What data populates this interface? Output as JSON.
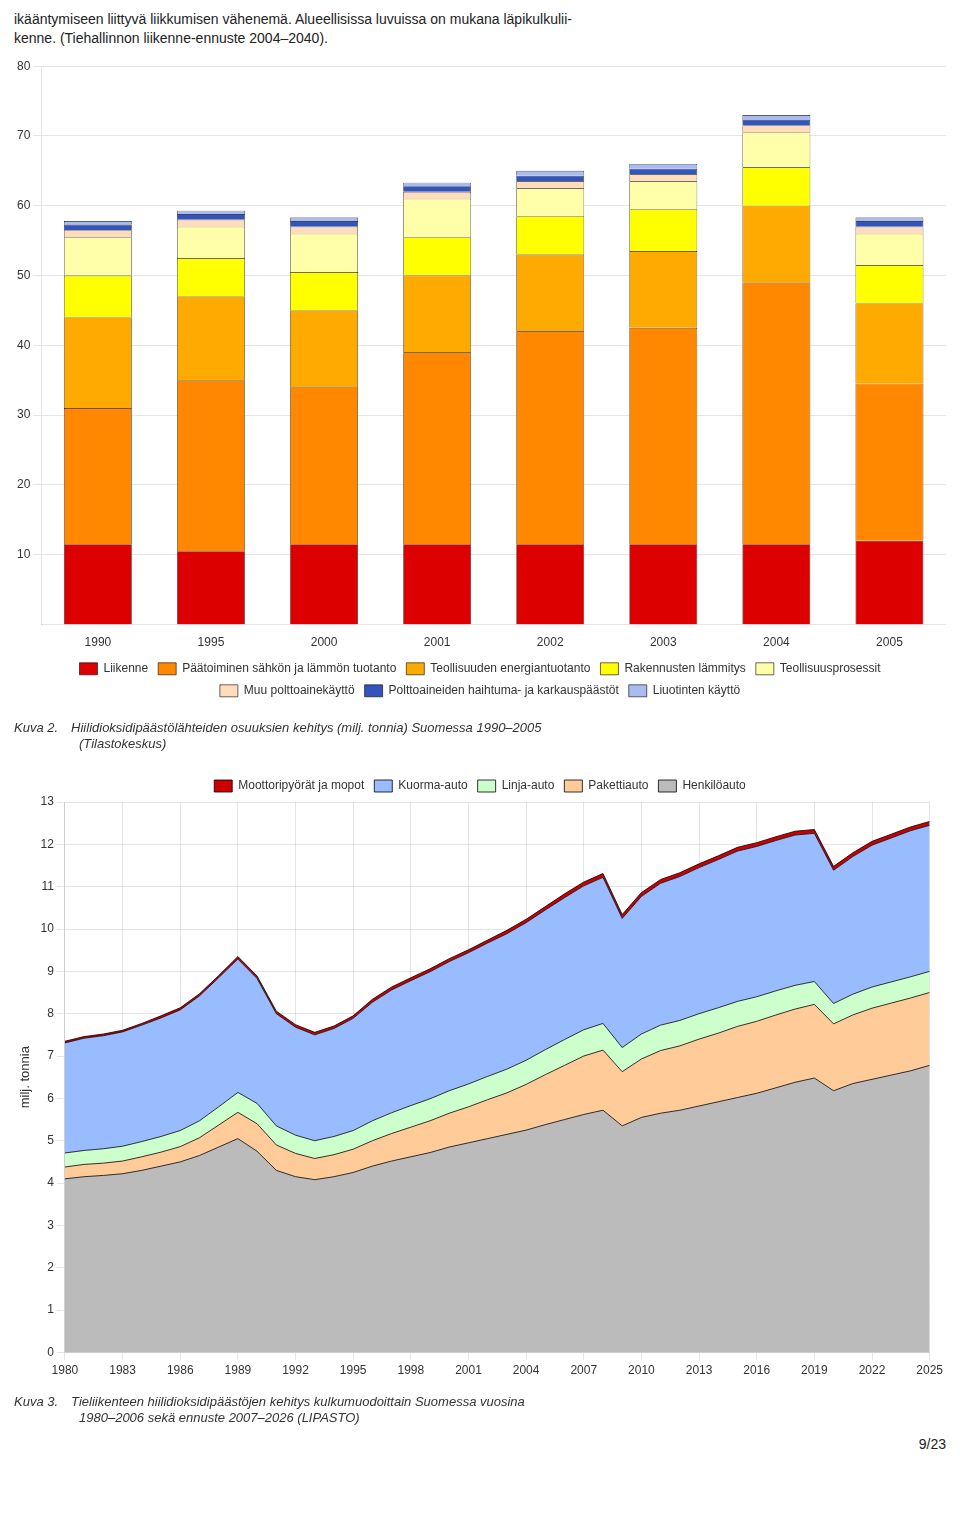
{
  "chart_data": [
    {
      "type": "bar",
      "stacked": true,
      "grid": "y",
      "legend": "bottom",
      "title": [
        "Kuva 2. Hiilidioksidipäästölähteiden osuuksien kehitys (milj. tonnia) Suomessa 1990–2005",
        "     (Tilastokeskus)"
      ],
      "annotations": [
        "ikääntymiseen liittyvä liikkumisen vähenemä. Alueellisissa luvuissa on mukana läpikulkulii-\nkenne. (Tiehallinnon liikenne-ennuste 2004–2040)."
      ],
      "categories": [
        "1990",
        "1995",
        "2000",
        "2001",
        "2002",
        "2003",
        "2004",
        "2005"
      ],
      "ylim": [
        0,
        80
      ],
      "yticks": [
        10,
        20,
        30,
        40,
        50,
        60,
        70,
        80
      ],
      "series": [
        {
          "name": "Liikenne",
          "color": "#DD0000",
          "values": [
            11.5,
            10.5,
            11.5,
            11.5,
            11.5,
            11.5,
            11.5,
            12.0
          ]
        },
        {
          "name": "Päätoiminen sähkön ja lämmön tuotanto",
          "color": "#FF8800",
          "values": [
            19.5,
            24.5,
            22.5,
            27.5,
            30.5,
            31.0,
            37.5,
            22.5
          ]
        },
        {
          "name": "Teollisuuden energiantuotanto",
          "color": "#FFAA00",
          "values": [
            13.0,
            12.0,
            11.0,
            11.0,
            11.0,
            11.0,
            11.0,
            11.5
          ]
        },
        {
          "name": "Rakennusten lämmitys",
          "color": "#FFFF00",
          "values": [
            6.0,
            5.5,
            5.5,
            5.5,
            5.5,
            6.0,
            5.5,
            5.5
          ]
        },
        {
          "name": "Teollisuusprosessit",
          "color": "#FFFFAA",
          "values": [
            5.5,
            4.5,
            5.5,
            5.5,
            4.0,
            4.0,
            5.0,
            4.5
          ]
        },
        {
          "name": "Muu polttoainekäyttö",
          "color": "#FFDDBB",
          "values": [
            1.0,
            1.0,
            1.0,
            1.0,
            1.0,
            1.0,
            1.0,
            1.0
          ]
        },
        {
          "name": "Polttoaineiden haihtuma- ja karkauspäästöt",
          "color": "#3355BB",
          "values": [
            0.8,
            0.8,
            0.8,
            0.8,
            0.8,
            0.8,
            0.8,
            0.8
          ]
        },
        {
          "name": "Liuotinten käyttö",
          "color": "#AABBEE",
          "values": [
            0.5,
            0.5,
            0.5,
            0.5,
            0.7,
            0.7,
            0.7,
            0.5
          ]
        }
      ]
    },
    {
      "type": "area",
      "stacked": true,
      "grid": true,
      "legend": "top",
      "title": [
        "Kuva 3. Tieliikenteen hiilidioksidipäästöjen kehitys kulkumuodoittain Suomessa vuosina",
        "     1980–2006 sekä ennuste 2007–2026 (LIPASTO)"
      ],
      "annotations": [
        "9/23"
      ],
      "ylabel": "milj. tonnia",
      "x": [
        1980,
        1981,
        1982,
        1983,
        1984,
        1985,
        1986,
        1987,
        1988,
        1989,
        1990,
        1991,
        1992,
        1993,
        1994,
        1995,
        1996,
        1997,
        1998,
        1999,
        2000,
        2001,
        2002,
        2003,
        2004,
        2005,
        2006,
        2007,
        2008,
        2009,
        2010,
        2011,
        2012,
        2013,
        2014,
        2015,
        2016,
        2017,
        2018,
        2019,
        2020,
        2021,
        2022,
        2023,
        2024,
        2025
      ],
      "xlim": [
        1980,
        2025
      ],
      "xticks": [
        1980,
        1983,
        1986,
        1989,
        1992,
        1995,
        1998,
        2001,
        2004,
        2007,
        2010,
        2013,
        2016,
        2019,
        2022,
        2025
      ],
      "ylim": [
        0,
        13
      ],
      "yticks": [
        0,
        1,
        2,
        3,
        4,
        5,
        6,
        7,
        8,
        9,
        10,
        11,
        12,
        13
      ],
      "series": [
        {
          "name": "Henkilöauto",
          "color": "#BBBBBB",
          "values": [
            4.1,
            4.15,
            4.18,
            4.22,
            4.3,
            4.4,
            4.5,
            4.65,
            4.85,
            5.05,
            4.75,
            4.3,
            4.15,
            4.08,
            4.15,
            4.25,
            4.4,
            4.52,
            4.62,
            4.72,
            4.85,
            4.95,
            5.05,
            5.15,
            5.25,
            5.38,
            5.5,
            5.62,
            5.72,
            5.35,
            5.55,
            5.65,
            5.72,
            5.82,
            5.92,
            6.02,
            6.12,
            6.25,
            6.38,
            6.48,
            6.18,
            6.35,
            6.45,
            6.55,
            6.65,
            6.78
          ]
        },
        {
          "name": "Pakettiauto",
          "color": "#FFCC99",
          "values": [
            0.28,
            0.29,
            0.29,
            0.3,
            0.32,
            0.33,
            0.36,
            0.42,
            0.52,
            0.62,
            0.65,
            0.6,
            0.55,
            0.5,
            0.52,
            0.55,
            0.6,
            0.65,
            0.7,
            0.75,
            0.8,
            0.85,
            0.92,
            0.98,
            1.08,
            1.18,
            1.28,
            1.38,
            1.42,
            1.28,
            1.38,
            1.48,
            1.52,
            1.58,
            1.62,
            1.68,
            1.7,
            1.72,
            1.73,
            1.74,
            1.58,
            1.62,
            1.68,
            1.7,
            1.72,
            1.72
          ]
        },
        {
          "name": "Linja-auto",
          "color": "#CCFFCC",
          "values": [
            0.33,
            0.33,
            0.34,
            0.35,
            0.36,
            0.37,
            0.38,
            0.4,
            0.43,
            0.47,
            0.48,
            0.45,
            0.43,
            0.42,
            0.43,
            0.44,
            0.47,
            0.49,
            0.51,
            0.52,
            0.53,
            0.54,
            0.55,
            0.56,
            0.57,
            0.59,
            0.61,
            0.62,
            0.63,
            0.57,
            0.59,
            0.6,
            0.6,
            0.6,
            0.6,
            0.59,
            0.58,
            0.57,
            0.56,
            0.54,
            0.48,
            0.49,
            0.5,
            0.5,
            0.5,
            0.5
          ]
        },
        {
          "name": "Kuorma-auto",
          "color": "#99BBFF",
          "values": [
            2.6,
            2.65,
            2.67,
            2.7,
            2.75,
            2.8,
            2.85,
            2.95,
            3.05,
            3.15,
            2.95,
            2.65,
            2.55,
            2.5,
            2.55,
            2.65,
            2.8,
            2.9,
            2.95,
            3.0,
            3.05,
            3.1,
            3.15,
            3.2,
            3.25,
            3.3,
            3.35,
            3.4,
            3.45,
            3.05,
            3.25,
            3.35,
            3.4,
            3.45,
            3.5,
            3.55,
            3.55,
            3.55,
            3.55,
            3.5,
            3.15,
            3.25,
            3.35,
            3.4,
            3.45,
            3.45
          ]
        },
        {
          "name": "Moottoripyörät ja mopot",
          "color": "#CC0000",
          "values": [
            0.04,
            0.04,
            0.04,
            0.04,
            0.04,
            0.05,
            0.05,
            0.05,
            0.05,
            0.06,
            0.06,
            0.06,
            0.06,
            0.06,
            0.06,
            0.06,
            0.07,
            0.07,
            0.07,
            0.07,
            0.07,
            0.07,
            0.07,
            0.08,
            0.08,
            0.08,
            0.09,
            0.09,
            0.09,
            0.09,
            0.09,
            0.09,
            0.09,
            0.09,
            0.09,
            0.09,
            0.09,
            0.09,
            0.09,
            0.09,
            0.09,
            0.09,
            0.09,
            0.09,
            0.09,
            0.09
          ]
        }
      ]
    }
  ]
}
